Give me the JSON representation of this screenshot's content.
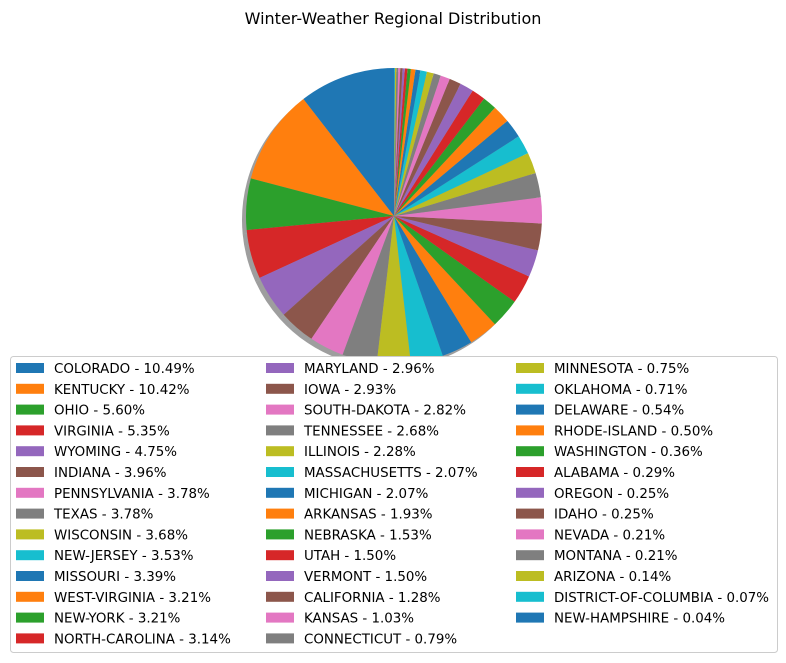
{
  "chart_data": {
    "type": "pie",
    "title": "Winter-Weather Regional Distribution",
    "start_angle_deg": 90,
    "direction": "counterclockwise",
    "shadow": true,
    "legend": {
      "placement": "bottom",
      "columns": 3
    },
    "slices": [
      {
        "label": "COLORADO - 10.49%",
        "value": 10.49,
        "color": "#1f77b4"
      },
      {
        "label": "KENTUCKY - 10.42%",
        "value": 10.42,
        "color": "#ff7f0e"
      },
      {
        "label": "OHIO - 5.60%",
        "value": 5.6,
        "color": "#2ca02c"
      },
      {
        "label": "VIRGINIA - 5.35%",
        "value": 5.35,
        "color": "#d62728"
      },
      {
        "label": "WYOMING - 4.75%",
        "value": 4.75,
        "color": "#9467bd"
      },
      {
        "label": "INDIANA - 3.96%",
        "value": 3.96,
        "color": "#8c564b"
      },
      {
        "label": "PENNSYLVANIA - 3.78%",
        "value": 3.78,
        "color": "#e377c2"
      },
      {
        "label": "TEXAS - 3.78%",
        "value": 3.78,
        "color": "#7f7f7f"
      },
      {
        "label": "WISCONSIN - 3.68%",
        "value": 3.68,
        "color": "#bcbd22"
      },
      {
        "label": "NEW-JERSEY - 3.53%",
        "value": 3.53,
        "color": "#17becf"
      },
      {
        "label": "MISSOURI - 3.39%",
        "value": 3.39,
        "color": "#1f77b4"
      },
      {
        "label": "WEST-VIRGINIA - 3.21%",
        "value": 3.21,
        "color": "#ff7f0e"
      },
      {
        "label": "NEW-YORK - 3.21%",
        "value": 3.21,
        "color": "#2ca02c"
      },
      {
        "label": "NORTH-CAROLINA - 3.14%",
        "value": 3.14,
        "color": "#d62728"
      },
      {
        "label": "MARYLAND - 2.96%",
        "value": 2.96,
        "color": "#9467bd"
      },
      {
        "label": "IOWA - 2.93%",
        "value": 2.93,
        "color": "#8c564b"
      },
      {
        "label": "SOUTH-DAKOTA - 2.82%",
        "value": 2.82,
        "color": "#e377c2"
      },
      {
        "label": "TENNESSEE - 2.68%",
        "value": 2.68,
        "color": "#7f7f7f"
      },
      {
        "label": "ILLINOIS - 2.28%",
        "value": 2.28,
        "color": "#bcbd22"
      },
      {
        "label": "MASSACHUSETTS - 2.07%",
        "value": 2.07,
        "color": "#17becf"
      },
      {
        "label": "MICHIGAN - 2.07%",
        "value": 2.07,
        "color": "#1f77b4"
      },
      {
        "label": "ARKANSAS - 1.93%",
        "value": 1.93,
        "color": "#ff7f0e"
      },
      {
        "label": "NEBRASKA - 1.53%",
        "value": 1.53,
        "color": "#2ca02c"
      },
      {
        "label": "UTAH - 1.50%",
        "value": 1.5,
        "color": "#d62728"
      },
      {
        "label": "VERMONT - 1.50%",
        "value": 1.5,
        "color": "#9467bd"
      },
      {
        "label": "CALIFORNIA - 1.28%",
        "value": 1.28,
        "color": "#8c564b"
      },
      {
        "label": "KANSAS - 1.03%",
        "value": 1.03,
        "color": "#e377c2"
      },
      {
        "label": "CONNECTICUT - 0.79%",
        "value": 0.79,
        "color": "#7f7f7f"
      },
      {
        "label": "MINNESOTA - 0.75%",
        "value": 0.75,
        "color": "#bcbd22"
      },
      {
        "label": "OKLAHOMA - 0.71%",
        "value": 0.71,
        "color": "#17becf"
      },
      {
        "label": "DELAWARE - 0.54%",
        "value": 0.54,
        "color": "#1f77b4"
      },
      {
        "label": "RHODE-ISLAND - 0.50%",
        "value": 0.5,
        "color": "#ff7f0e"
      },
      {
        "label": "WASHINGTON - 0.36%",
        "value": 0.36,
        "color": "#2ca02c"
      },
      {
        "label": "ALABAMA - 0.29%",
        "value": 0.29,
        "color": "#d62728"
      },
      {
        "label": "OREGON - 0.25%",
        "value": 0.25,
        "color": "#9467bd"
      },
      {
        "label": "IDAHO - 0.25%",
        "value": 0.25,
        "color": "#8c564b"
      },
      {
        "label": "NEVADA - 0.21%",
        "value": 0.21,
        "color": "#e377c2"
      },
      {
        "label": "MONTANA - 0.21%",
        "value": 0.21,
        "color": "#7f7f7f"
      },
      {
        "label": "ARIZONA - 0.14%",
        "value": 0.14,
        "color": "#bcbd22"
      },
      {
        "label": "DISTRICT-OF-COLUMBIA - 0.07%",
        "value": 0.07,
        "color": "#17becf"
      },
      {
        "label": "NEW-HAMPSHIRE - 0.04%",
        "value": 0.04,
        "color": "#1f77b4"
      }
    ]
  }
}
